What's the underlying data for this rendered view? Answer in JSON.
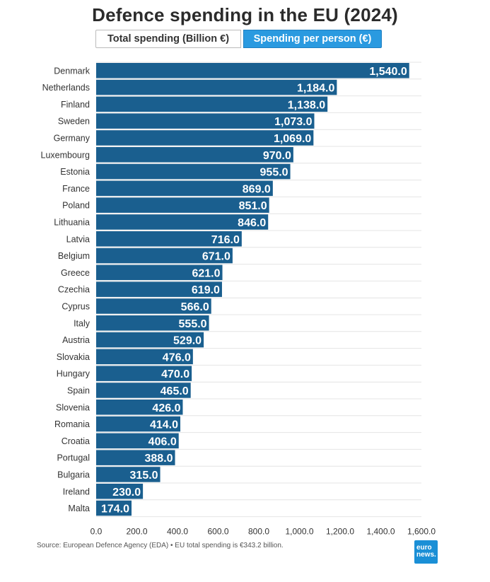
{
  "title": "Defence spending in the EU (2024)",
  "toggle": {
    "total_label": "Total spending (Billion €)",
    "person_label": "Spending per person (€)"
  },
  "chart_data": {
    "type": "bar",
    "orientation": "horizontal",
    "title": "Defence spending in the EU (2024)",
    "series_name": "Spending per person (€)",
    "categories": [
      "Denmark",
      "Netherlands",
      "Finland",
      "Sweden",
      "Germany",
      "Luxembourg",
      "Estonia",
      "France",
      "Poland",
      "Lithuania",
      "Latvia",
      "Belgium",
      "Greece",
      "Czechia",
      "Cyprus",
      "Italy",
      "Austria",
      "Slovakia",
      "Hungary",
      "Spain",
      "Slovenia",
      "Romania",
      "Croatia",
      "Portugal",
      "Bulgaria",
      "Ireland",
      "Malta"
    ],
    "values": [
      1540.0,
      1184.0,
      1138.0,
      1073.0,
      1069.0,
      970.0,
      955.0,
      869.0,
      851.0,
      846.0,
      716.0,
      671.0,
      621.0,
      619.0,
      566.0,
      555.0,
      529.0,
      476.0,
      470.0,
      465.0,
      426.0,
      414.0,
      406.0,
      388.0,
      315.0,
      230.0,
      174.0
    ],
    "value_labels": [
      "1,540.0",
      "1,184.0",
      "1,138.0",
      "1,073.0",
      "1,069.0",
      "970.0",
      "955.0",
      "869.0",
      "851.0",
      "846.0",
      "716.0",
      "671.0",
      "621.0",
      "619.0",
      "566.0",
      "555.0",
      "529.0",
      "476.0",
      "470.0",
      "465.0",
      "426.0",
      "414.0",
      "406.0",
      "388.0",
      "315.0",
      "230.0",
      "174.0"
    ],
    "xlim": [
      0,
      1600
    ],
    "xticks": [
      0,
      200,
      400,
      600,
      800,
      1000,
      1200,
      1400,
      1600
    ],
    "xtick_labels": [
      "0.0",
      "200.0",
      "400.0",
      "600.0",
      "800.0",
      "1,000.0",
      "1,200.0",
      "1,400.0",
      "1,600.0"
    ],
    "xlabel": "",
    "ylabel": "",
    "bar_color": "#1a5f8f",
    "grid": true
  },
  "source": "Source: European Defence Agency (EDA) • EU total spending is €343.2 billion.",
  "logo": {
    "line1": "euro",
    "line2": "news."
  },
  "colors": {
    "accent": "#2a9ae0",
    "bar": "#1a5f8f"
  }
}
